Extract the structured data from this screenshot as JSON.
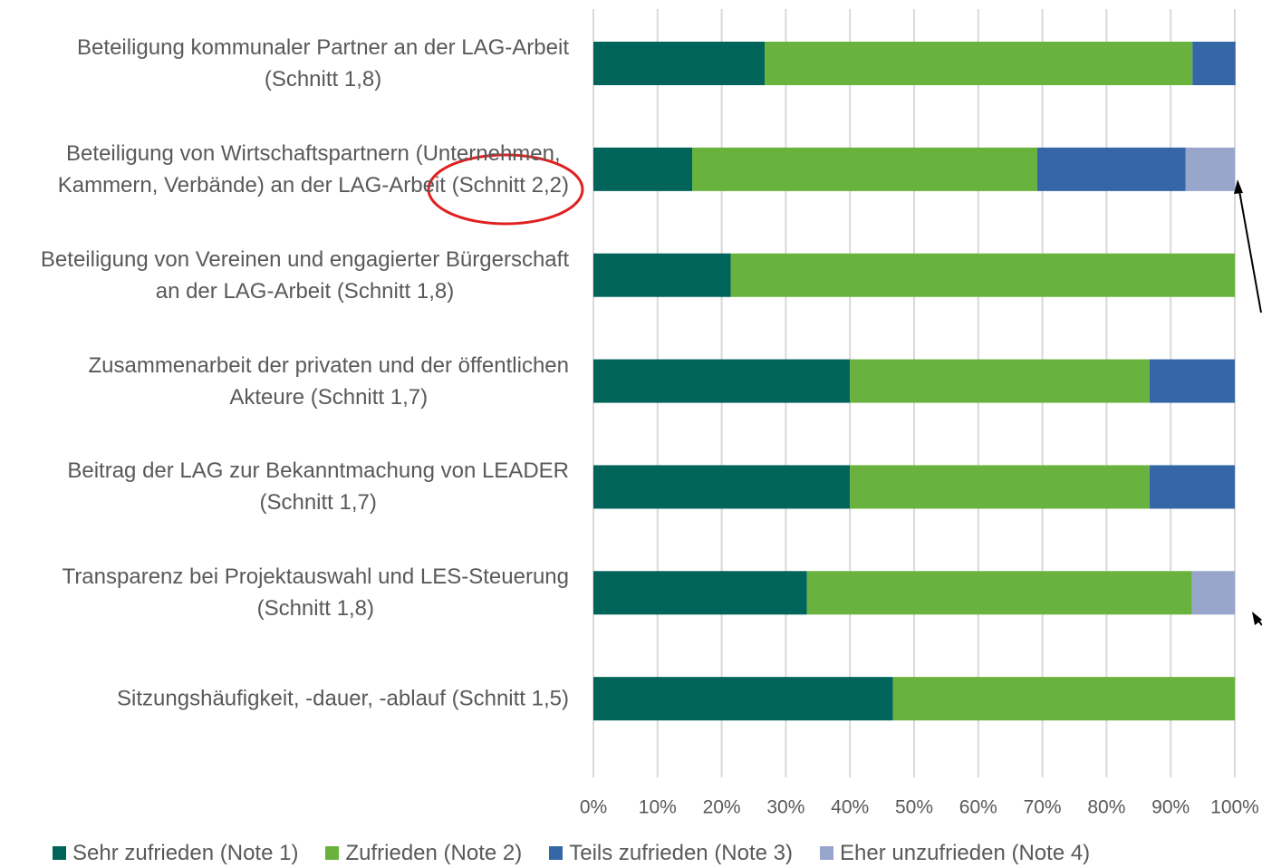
{
  "chart_data": {
    "type": "stacked_barh",
    "categories": [
      "Beteiligung kommunaler Partner an der LAG-Arbeit\n(Schnitt 1,8)",
      "Beteiligung von Wirtschaftspartnern (Unternehmen,\nKammern, Verbände) an der LAG-Arbeit (Schnitt 2,2)",
      "Beteiligung von Vereinen und engagierter Bürgerschaft\nan der LAG-Arbeit (Schnitt 1,8)",
      "Zusammenarbeit der privaten und der öffentlichen\nAkteure (Schnitt 1,7)",
      "Beitrag der LAG zur Bekanntmachung von LEADER\n(Schnitt 1,7)",
      "Transparenz bei Projektauswahl und LES-Steuerung\n(Schnitt 1,8)",
      "Sitzungshäufigkeit, -dauer, -ablauf (Schnitt 1,5)"
    ],
    "series": [
      {
        "name": "Sehr zufrieden (Note 1)",
        "color": "#00645a",
        "values": [
          26.7,
          15.4,
          21.4,
          40,
          40,
          33.3,
          46.7
        ]
      },
      {
        "name": "Zufrieden (Note 2)",
        "color": "#6ab23e",
        "values": [
          66.7,
          53.8,
          78.6,
          46.7,
          46.7,
          60,
          53.3
        ]
      },
      {
        "name": "Teils zufrieden (Note 3)",
        "color": "#3566a6",
        "values": [
          6.7,
          23.1,
          0,
          13.3,
          13.3,
          0,
          0
        ]
      },
      {
        "name": "Eher unzufrieden (Note 4)",
        "color": "#98a6cc",
        "values": [
          0,
          7.7,
          0,
          0,
          0,
          6.7,
          0
        ]
      }
    ],
    "xlim": [
      0,
      100
    ],
    "xticks": [
      {
        "value": 0,
        "label": "0%"
      },
      {
        "value": 10,
        "label": "10%"
      },
      {
        "value": 20,
        "label": "20%"
      },
      {
        "value": 30,
        "label": "30%"
      },
      {
        "value": 40,
        "label": "40%"
      },
      {
        "value": 50,
        "label": "50%"
      },
      {
        "value": 60,
        "label": "60%"
      },
      {
        "value": 70,
        "label": "70%"
      },
      {
        "value": 80,
        "label": "80%"
      },
      {
        "value": 90,
        "label": "90%"
      },
      {
        "value": 100,
        "label": "100%"
      }
    ],
    "grid": true,
    "legend": "bottom"
  }
}
